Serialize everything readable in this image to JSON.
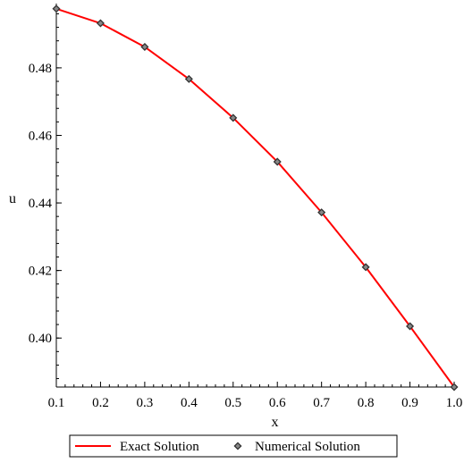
{
  "chart_data": {
    "type": "line",
    "title": "",
    "xlabel": "x",
    "ylabel": "u",
    "xlim": [
      0.1,
      1.0
    ],
    "ylim": [
      0.3855,
      0.4985
    ],
    "x_ticks": [
      0.1,
      0.2,
      0.3,
      0.4,
      0.5,
      0.6,
      0.7,
      0.8,
      0.9,
      1.0
    ],
    "x_tick_labels": [
      "0.1",
      "0.2",
      "0.3",
      "0.4",
      "0.5",
      "0.6",
      "0.7",
      "0.8",
      "0.9",
      "1.0"
    ],
    "y_ticks": [
      0.4,
      0.42,
      0.44,
      0.46,
      0.48
    ],
    "y_tick_labels": [
      "0.40",
      "0.42",
      "0.44",
      "0.46",
      "0.48"
    ],
    "grid": false,
    "legend_position": "bottom",
    "series": [
      {
        "name": "Exact Solution",
        "style": "line",
        "color": "#ff0000",
        "x": [
          0.1,
          0.2,
          0.3,
          0.4,
          0.5,
          0.6,
          0.7,
          0.8,
          0.9,
          1.0
        ],
        "y": [
          0.4975,
          0.4932,
          0.4862,
          0.4767,
          0.4652,
          0.4522,
          0.4372,
          0.421,
          0.4035,
          0.3855
        ]
      },
      {
        "name": "Numerical Solution",
        "style": "markers",
        "marker": "diamond",
        "color": "#333333",
        "x": [
          0.1,
          0.2,
          0.3,
          0.4,
          0.5,
          0.6,
          0.7,
          0.8,
          0.9,
          1.0
        ],
        "y": [
          0.4975,
          0.4932,
          0.4862,
          0.4767,
          0.4652,
          0.4522,
          0.4372,
          0.421,
          0.4035,
          0.3855
        ]
      }
    ]
  }
}
